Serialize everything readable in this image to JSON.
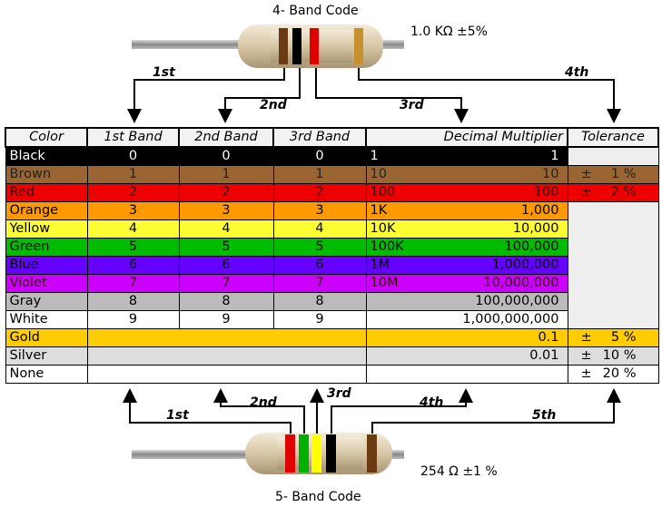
{
  "top": {
    "title": "4- Band Code",
    "value": "1.0 KΩ  ±5%",
    "arrows": [
      "1st",
      "2nd",
      "3rd",
      "4th"
    ],
    "bands": [
      "#6b3a10",
      "#000000",
      "#e00000",
      "#c8902c"
    ]
  },
  "bottom": {
    "title": "5- Band Code",
    "value": "254 Ω  ±1 %",
    "arrows": [
      "1st",
      "2nd",
      "3rd",
      "4th",
      "5th"
    ],
    "bands": [
      "#e00000",
      "#00b000",
      "#ffff00",
      "#000000",
      "#6b3a10"
    ]
  },
  "headers": [
    "Color",
    "1st Band",
    "2nd Band",
    "3rd Band",
    "Decimal Multiplier",
    "Tolerance"
  ],
  "tolerance_sign": "±",
  "rows": [
    {
      "color": "Black",
      "bg": "#000000",
      "fg": "#ffffff",
      "b1": "0",
      "b2": "0",
      "b3": "0",
      "ms": "1",
      "ml": "1",
      "tol": ""
    },
    {
      "color": "Brown",
      "bg": "#996633",
      "fg": "#222222",
      "b1": "1",
      "b2": "1",
      "b3": "1",
      "ms": "10",
      "ml": "10",
      "tol": "1 %"
    },
    {
      "color": "Red",
      "bg": "#ee0000",
      "fg": "#330000",
      "b1": "2",
      "b2": "2",
      "b3": "2",
      "ms": "100",
      "ml": "100",
      "tol": "2 %"
    },
    {
      "color": "Orange",
      "bg": "#ff9900",
      "fg": "#000000",
      "b1": "3",
      "b2": "3",
      "b3": "3",
      "ms": "1K",
      "ml": "1,000",
      "tol": null
    },
    {
      "color": "Yellow",
      "bg": "#ffff33",
      "fg": "#000000",
      "b1": "4",
      "b2": "4",
      "b3": "4",
      "ms": "10K",
      "ml": "10,000",
      "tol": null
    },
    {
      "color": "Green",
      "bg": "#00bb00",
      "fg": "#000000",
      "b1": "5",
      "b2": "5",
      "b3": "5",
      "ms": "100K",
      "ml": "100,000",
      "tol": null
    },
    {
      "color": "Blue",
      "bg": "#6600ff",
      "fg": "#000000",
      "b1": "6",
      "b2": "6",
      "b3": "6",
      "ms": "1M",
      "ml": "1,000,000",
      "tol": null
    },
    {
      "color": "Violet",
      "bg": "#cc00ff",
      "fg": "#330000",
      "b1": "7",
      "b2": "7",
      "b3": "7",
      "ms": "10M",
      "ml": "10,000,000",
      "tol": null
    },
    {
      "color": "Gray",
      "bg": "#bbbbbb",
      "fg": "#000000",
      "b1": "8",
      "b2": "8",
      "b3": "8",
      "ms": "",
      "ml": "100,000,000",
      "tol": null
    },
    {
      "color": "White",
      "bg": "#ffffff",
      "fg": "#000000",
      "b1": "9",
      "b2": "9",
      "b3": "9",
      "ms": "",
      "ml": "1,000,000,000",
      "tol": null
    },
    {
      "color": "Gold",
      "bg": "#ffcc00",
      "fg": "#000000",
      "ml": "0.1",
      "tol": "5 %"
    },
    {
      "color": "Silver",
      "bg": "#dddddd",
      "fg": "#000000",
      "ml": "0.01",
      "tol": "10 %"
    },
    {
      "color": "None",
      "bg": "#ffffff",
      "fg": "#000000",
      "ml": "",
      "tol": "20 %"
    }
  ]
}
